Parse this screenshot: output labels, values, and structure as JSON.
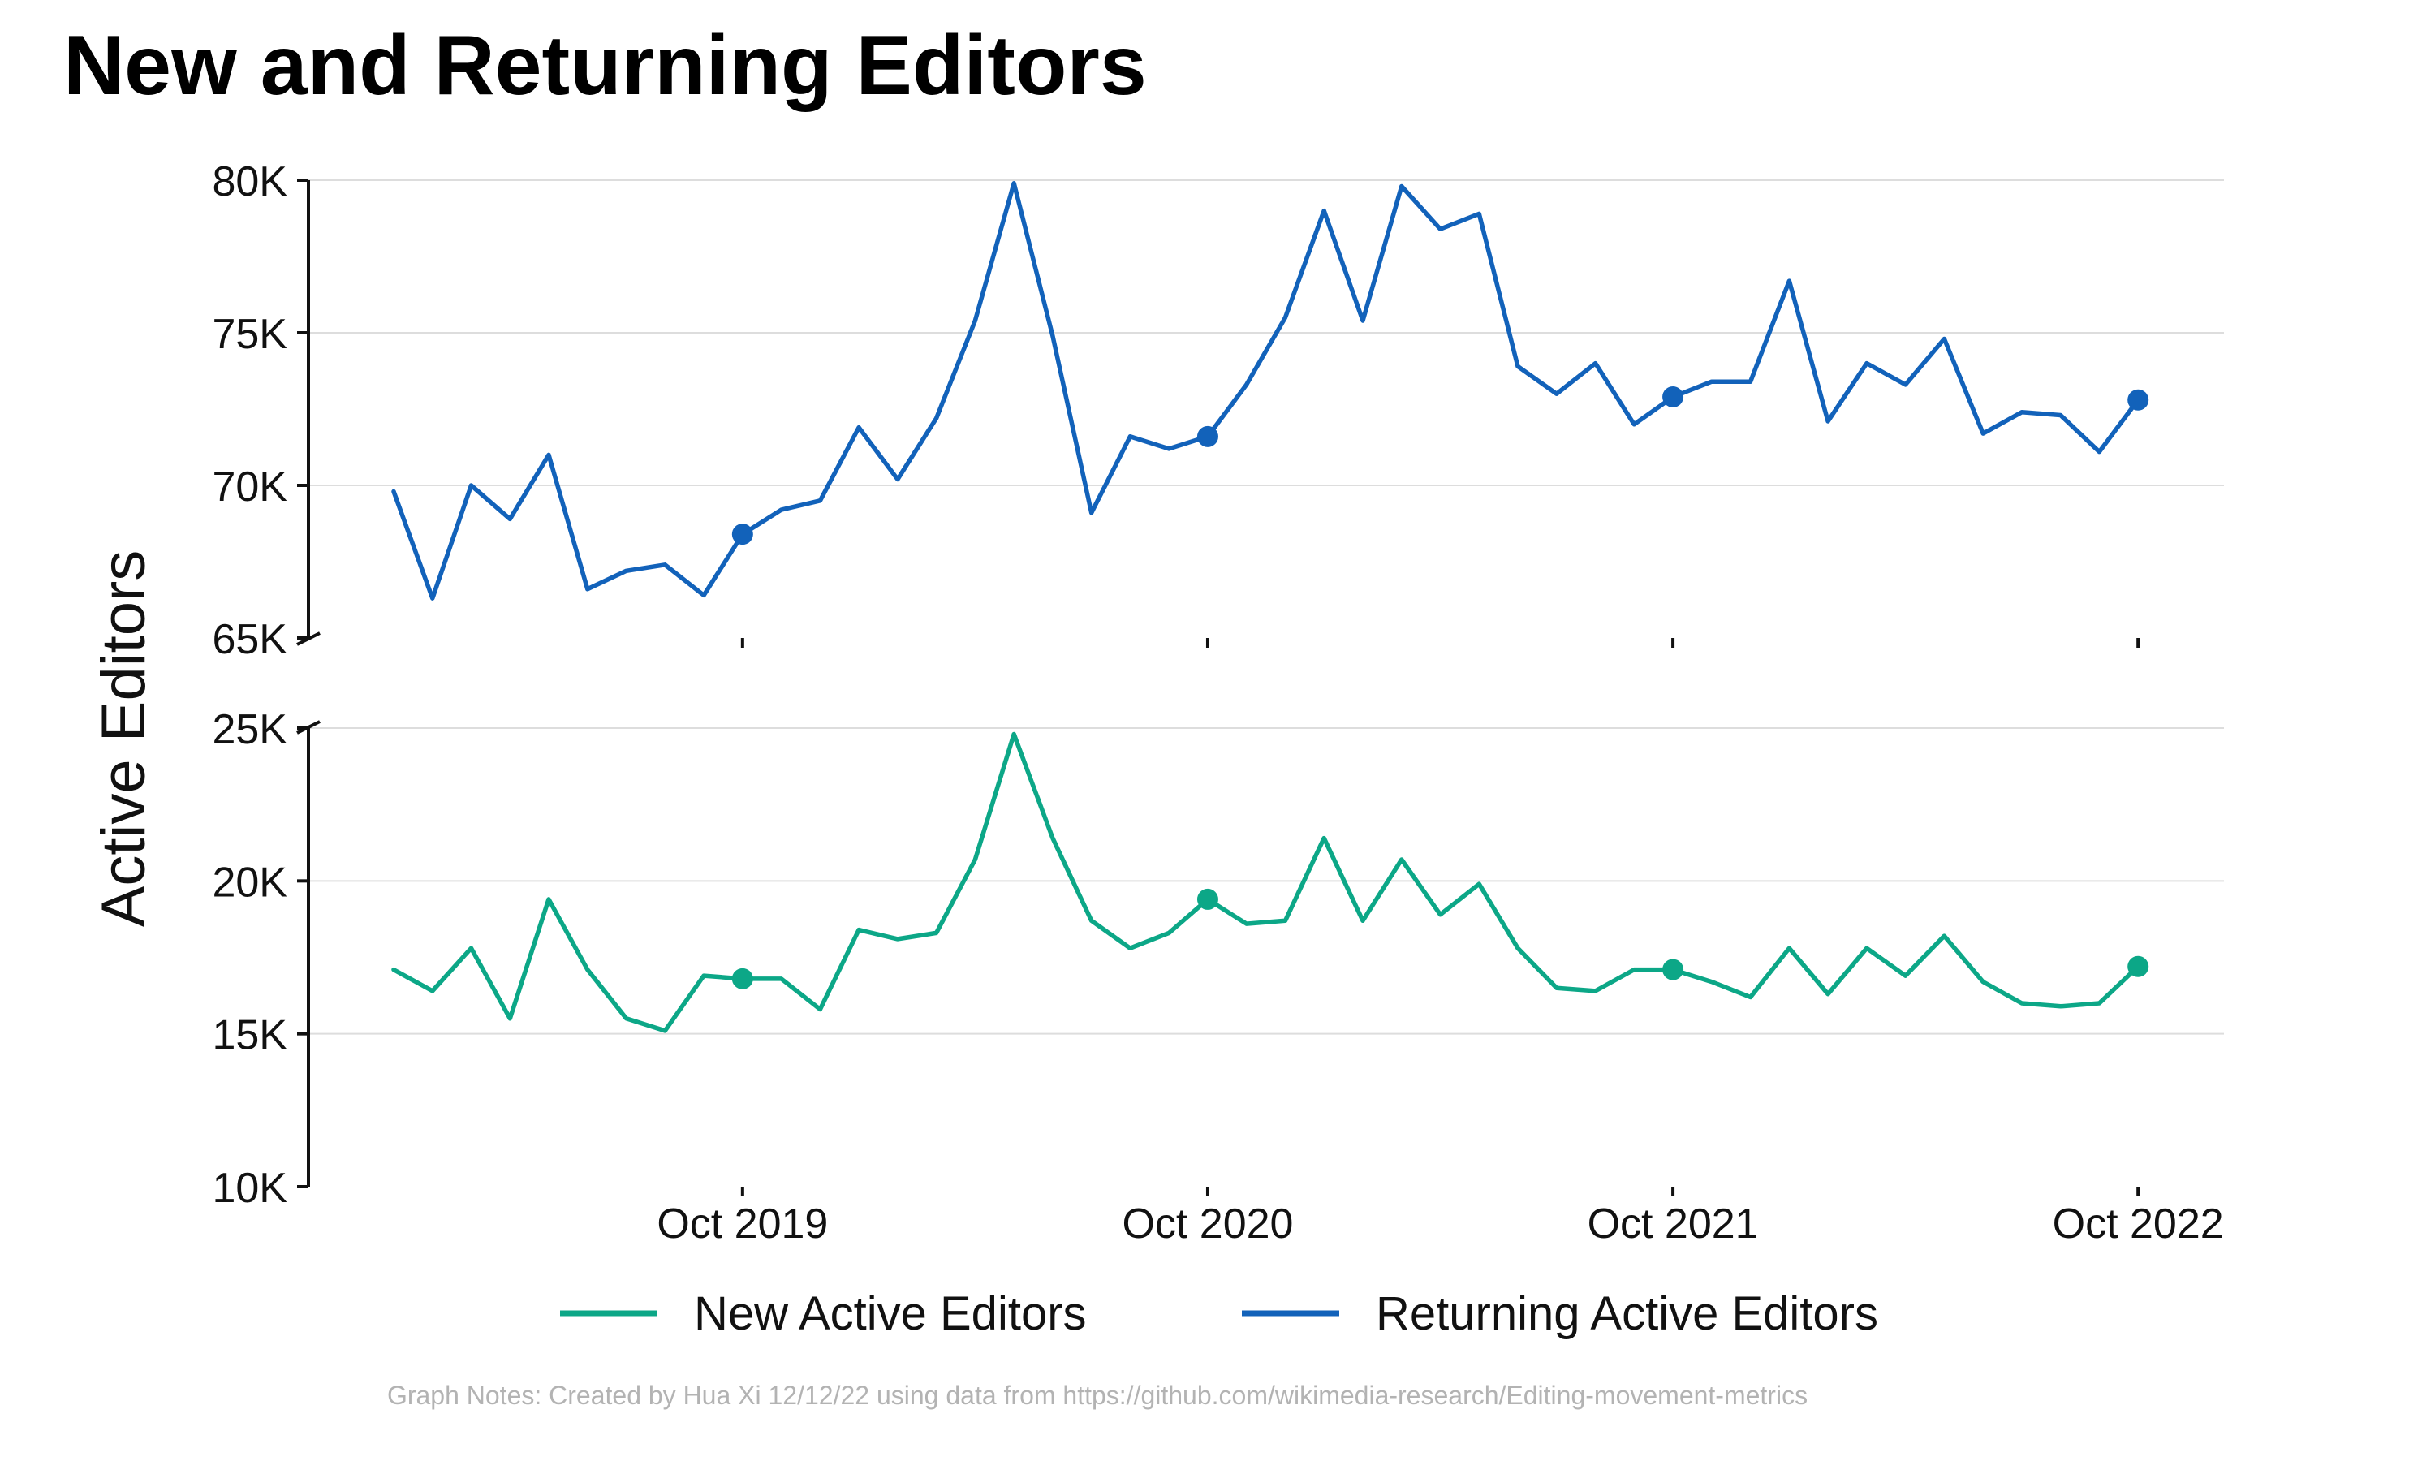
{
  "chart_data": {
    "type": "line",
    "title": "New and Returning Editors",
    "ylabel": "Active Editors",
    "xlabel": "",
    "x_tick_labels": [
      "Oct 2019",
      "Oct 2020",
      "Oct 2021",
      "Oct 2022"
    ],
    "x_tick_months": [
      "2019-10",
      "2020-10",
      "2021-10",
      "2022-10"
    ],
    "months": [
      "2019-01",
      "2019-02",
      "2019-03",
      "2019-04",
      "2019-05",
      "2019-06",
      "2019-07",
      "2019-08",
      "2019-09",
      "2019-10",
      "2019-11",
      "2019-12",
      "2020-01",
      "2020-02",
      "2020-03",
      "2020-04",
      "2020-05",
      "2020-06",
      "2020-07",
      "2020-08",
      "2020-09",
      "2020-10",
      "2020-11",
      "2020-12",
      "2021-01",
      "2021-02",
      "2021-03",
      "2021-04",
      "2021-05",
      "2021-06",
      "2021-07",
      "2021-08",
      "2021-09",
      "2021-10",
      "2021-11",
      "2021-12",
      "2022-01",
      "2022-02",
      "2022-03",
      "2022-04",
      "2022-05",
      "2022-06",
      "2022-07",
      "2022-08",
      "2022-09",
      "2022-10"
    ],
    "upper_panel": {
      "ylim": [
        65000,
        80000
      ],
      "ytick_labels": [
        "65K",
        "70K",
        "75K",
        "80K"
      ],
      "ytick_values": [
        65000,
        70000,
        75000,
        80000
      ]
    },
    "lower_panel": {
      "ylim": [
        10000,
        25000
      ],
      "ytick_labels": [
        "10K",
        "15K",
        "20K",
        "25K"
      ],
      "ytick_values": [
        10000,
        15000,
        20000,
        25000
      ]
    },
    "grid": "horizontal",
    "legend_position": "bottom",
    "series": [
      {
        "name": "New Active Editors",
        "color": "#0ca787",
        "panel": "lower",
        "values": [
          17100,
          16400,
          17800,
          15500,
          19400,
          17100,
          15500,
          15100,
          16900,
          16800,
          16800,
          15800,
          18400,
          18100,
          18300,
          20700,
          24800,
          21400,
          18700,
          17800,
          18300,
          19400,
          18600,
          18700,
          21400,
          18700,
          20700,
          18900,
          19900,
          17800,
          16500,
          16400,
          17100,
          17100,
          16700,
          16200,
          17800,
          16300,
          17800,
          16900,
          18200,
          16700,
          16000,
          15900,
          16000,
          17200
        ],
        "highlight_months": [
          "2019-10",
          "2020-10",
          "2021-10",
          "2022-10"
        ]
      },
      {
        "name": "Returning Active Editors",
        "color": "#1262ba",
        "panel": "upper",
        "values": [
          69800,
          66300,
          70000,
          68900,
          71000,
          66600,
          67200,
          67400,
          66400,
          68400,
          69200,
          69500,
          71900,
          70200,
          72200,
          75400,
          79900,
          74900,
          69100,
          71600,
          71200,
          71600,
          73300,
          75500,
          79000,
          75400,
          79800,
          78400,
          78900,
          73900,
          73000,
          74000,
          72000,
          72900,
          73400,
          73400,
          76700,
          72100,
          74000,
          73300,
          74800,
          71700,
          72400,
          72300,
          71100,
          72800
        ],
        "highlight_months": [
          "2019-10",
          "2020-10",
          "2021-10",
          "2022-10"
        ]
      }
    ],
    "note": "Graph Notes: Created by Hua Xi 12/12/22 using data from https://github.com/wikimedia-research/Editing-movement-metrics"
  }
}
